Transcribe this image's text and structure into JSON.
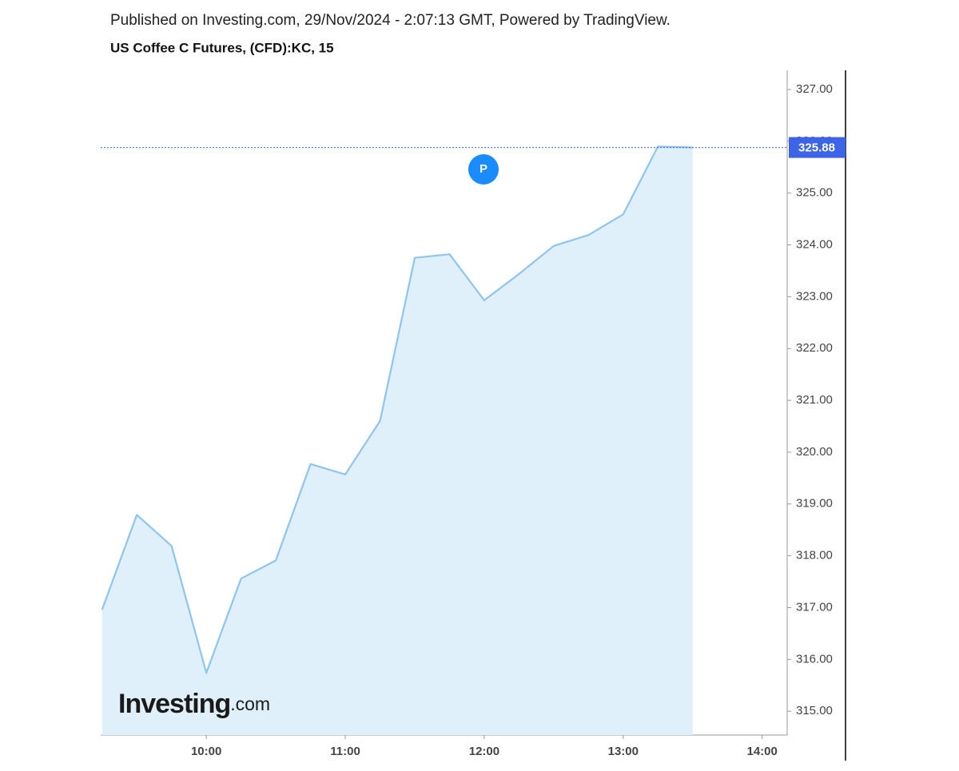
{
  "chart_data": {
    "type": "area",
    "title": "Published on Investing.com, 29/Nov/2024 - 2:07:13 GMT, Powered by TradingView.",
    "subtitle": "US Coffee C Futures, (CFD):KC, 15",
    "x": [
      9.25,
      9.5,
      9.75,
      10,
      10.25,
      10.5,
      10.75,
      11,
      11.25,
      11.5,
      11.75,
      12,
      12.25,
      12.5,
      12.75,
      13,
      13.25,
      13.5
    ],
    "values": [
      316.96,
      318.79,
      318.19,
      315.74,
      317.56,
      317.91,
      319.77,
      319.57,
      320.6,
      323.75,
      323.82,
      322.93,
      323.44,
      323.98,
      324.19,
      324.59,
      325.9,
      325.88
    ],
    "color": "#8ec5f0",
    "fill": "#e0f0fa",
    "xlim": [
      9.24,
      14.18
    ],
    "ylim": [
      314.54,
      327.37
    ],
    "xticks": [
      {
        "value": 10,
        "label": "10:00"
      },
      {
        "value": 11,
        "label": "11:00"
      },
      {
        "value": 12,
        "label": "12:00"
      },
      {
        "value": 13,
        "label": "13:00"
      },
      {
        "value": 14,
        "label": "14:00"
      }
    ],
    "yticks": [
      {
        "value": 315,
        "label": "315.00"
      },
      {
        "value": 316,
        "label": "316.00"
      },
      {
        "value": 317,
        "label": "317.00"
      },
      {
        "value": 318,
        "label": "318.00"
      },
      {
        "value": 319,
        "label": "319.00"
      },
      {
        "value": 320,
        "label": "320.00"
      },
      {
        "value": 321,
        "label": "321.00"
      },
      {
        "value": 322,
        "label": "322.00"
      },
      {
        "value": 323,
        "label": "323.00"
      },
      {
        "value": 324,
        "label": "324.00"
      },
      {
        "value": 325,
        "label": "325.00"
      },
      {
        "value": 326,
        "label": "326.00"
      },
      {
        "value": 327,
        "label": "327.00"
      }
    ],
    "last_price": 325.88,
    "last_price_color": "#3c64e6",
    "annotation": "P",
    "logo_main": "Investing",
    "logo_suffix": ".com"
  }
}
